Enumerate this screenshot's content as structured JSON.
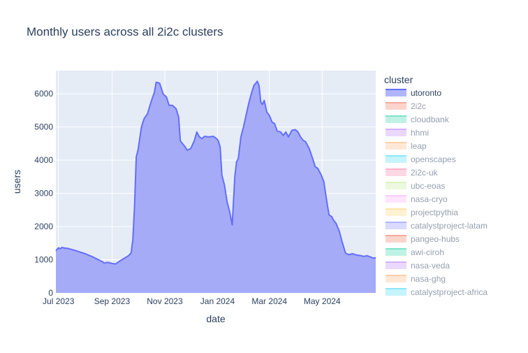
{
  "chart_data": {
    "type": "area",
    "title": "Monthly users across all 2i2c clusters",
    "xlabel": "date",
    "ylabel": "users",
    "xlim": [
      "2023-06-28",
      "2024-07-02"
    ],
    "ylim": [
      0,
      6700
    ],
    "x_ticks": [
      {
        "date": "2023-07-01",
        "label": "Jul 2023"
      },
      {
        "date": "2023-09-01",
        "label": "Sep 2023"
      },
      {
        "date": "2023-11-01",
        "label": "Nov 2023"
      },
      {
        "date": "2024-01-01",
        "label": "Jan 2024"
      },
      {
        "date": "2024-03-01",
        "label": "Mar 2024"
      },
      {
        "date": "2024-05-01",
        "label": "May 2024"
      }
    ],
    "y_ticks": [
      0,
      1000,
      2000,
      3000,
      4000,
      5000,
      6000
    ],
    "grid": true,
    "plot_background": "#e5ecf6",
    "legend": {
      "title": "cluster",
      "placement": "right",
      "entries": [
        {
          "name": "utoronto",
          "color": "#636efa",
          "active": true
        },
        {
          "name": "2i2c",
          "color": "#ef553b",
          "active": false
        },
        {
          "name": "cloudbank",
          "color": "#00cc96",
          "active": false
        },
        {
          "name": "hhmi",
          "color": "#ab63fa",
          "active": false
        },
        {
          "name": "leap",
          "color": "#ffa15a",
          "active": false
        },
        {
          "name": "openscapes",
          "color": "#19d3f3",
          "active": false
        },
        {
          "name": "2i2c-uk",
          "color": "#ff6692",
          "active": false
        },
        {
          "name": "ubc-eoas",
          "color": "#b6e880",
          "active": false
        },
        {
          "name": "nasa-cryo",
          "color": "#ff97ff",
          "active": false
        },
        {
          "name": "projectpythia",
          "color": "#fecb52",
          "active": false
        },
        {
          "name": "catalystproject-latam",
          "color": "#636efa",
          "active": false
        },
        {
          "name": "pangeo-hubs",
          "color": "#ef553b",
          "active": false
        },
        {
          "name": "awi-ciroh",
          "color": "#00cc96",
          "active": false
        },
        {
          "name": "nasa-veda",
          "color": "#ab63fa",
          "active": false
        },
        {
          "name": "nasa-ghg",
          "color": "#ffa15a",
          "active": false
        },
        {
          "name": "catalystproject-africa",
          "color": "#19d3f3",
          "active": false
        }
      ]
    },
    "series": [
      {
        "name": "utoronto",
        "color": "#636efa",
        "fill_color": "#a5abf7",
        "points": [
          [
            "2023-06-28",
            1270
          ],
          [
            "2023-06-30",
            1330
          ],
          [
            "2023-07-01",
            1360
          ],
          [
            "2023-07-03",
            1330
          ],
          [
            "2023-07-05",
            1370
          ],
          [
            "2023-07-08",
            1350
          ],
          [
            "2023-07-12",
            1340
          ],
          [
            "2023-07-20",
            1280
          ],
          [
            "2023-08-01",
            1180
          ],
          [
            "2023-08-10",
            1080
          ],
          [
            "2023-08-20",
            950
          ],
          [
            "2023-08-23",
            900
          ],
          [
            "2023-08-27",
            920
          ],
          [
            "2023-09-01",
            890
          ],
          [
            "2023-09-05",
            870
          ],
          [
            "2023-09-10",
            960
          ],
          [
            "2023-09-20",
            1120
          ],
          [
            "2023-09-23",
            1200
          ],
          [
            "2023-09-25",
            1600
          ],
          [
            "2023-09-27",
            2600
          ],
          [
            "2023-09-29",
            4100
          ],
          [
            "2023-10-01",
            4300
          ],
          [
            "2023-10-05",
            5000
          ],
          [
            "2023-10-08",
            5250
          ],
          [
            "2023-10-12",
            5400
          ],
          [
            "2023-10-16",
            5750
          ],
          [
            "2023-10-20",
            6050
          ],
          [
            "2023-10-22",
            6350
          ],
          [
            "2023-10-26",
            6320
          ],
          [
            "2023-10-30",
            6000
          ],
          [
            "2023-11-03",
            5900
          ],
          [
            "2023-11-06",
            5650
          ],
          [
            "2023-11-10",
            5650
          ],
          [
            "2023-11-14",
            5550
          ],
          [
            "2023-11-17",
            5300
          ],
          [
            "2023-11-19",
            4580
          ],
          [
            "2023-11-24",
            4420
          ],
          [
            "2023-11-27",
            4300
          ],
          [
            "2023-12-01",
            4350
          ],
          [
            "2023-12-05",
            4580
          ],
          [
            "2023-12-08",
            4850
          ],
          [
            "2023-12-11",
            4700
          ],
          [
            "2023-12-14",
            4650
          ],
          [
            "2023-12-17",
            4720
          ],
          [
            "2023-12-22",
            4700
          ],
          [
            "2023-12-27",
            4720
          ],
          [
            "2023-12-31",
            4650
          ],
          [
            "2024-01-02",
            4580
          ],
          [
            "2024-01-04",
            4400
          ],
          [
            "2024-01-06",
            3550
          ],
          [
            "2024-01-09",
            3250
          ],
          [
            "2024-01-12",
            2750
          ],
          [
            "2024-01-15",
            2450
          ],
          [
            "2024-01-18",
            2050
          ],
          [
            "2024-01-21",
            3500
          ],
          [
            "2024-01-23",
            3950
          ],
          [
            "2024-01-25",
            4050
          ],
          [
            "2024-01-28",
            4700
          ],
          [
            "2024-01-31",
            5000
          ],
          [
            "2024-02-03",
            5350
          ],
          [
            "2024-02-06",
            5700
          ],
          [
            "2024-02-09",
            6000
          ],
          [
            "2024-02-12",
            6250
          ],
          [
            "2024-02-16",
            6380
          ],
          [
            "2024-02-18",
            6250
          ],
          [
            "2024-02-20",
            5750
          ],
          [
            "2024-02-22",
            5680
          ],
          [
            "2024-02-24",
            5800
          ],
          [
            "2024-02-27",
            5450
          ],
          [
            "2024-03-01",
            5350
          ],
          [
            "2024-03-04",
            5150
          ],
          [
            "2024-03-07",
            5100
          ],
          [
            "2024-03-10",
            4880
          ],
          [
            "2024-03-14",
            4850
          ],
          [
            "2024-03-17",
            4750
          ],
          [
            "2024-03-20",
            4850
          ],
          [
            "2024-03-23",
            4700
          ],
          [
            "2024-03-27",
            4900
          ],
          [
            "2024-03-31",
            4920
          ],
          [
            "2024-04-03",
            4850
          ],
          [
            "2024-04-06",
            4700
          ],
          [
            "2024-04-09",
            4600
          ],
          [
            "2024-04-12",
            4550
          ],
          [
            "2024-04-16",
            4350
          ],
          [
            "2024-04-20",
            4050
          ],
          [
            "2024-04-23",
            3800
          ],
          [
            "2024-04-26",
            3750
          ],
          [
            "2024-04-30",
            3550
          ],
          [
            "2024-05-03",
            3350
          ],
          [
            "2024-05-05",
            3000
          ],
          [
            "2024-05-07",
            2650
          ],
          [
            "2024-05-09",
            2350
          ],
          [
            "2024-05-12",
            2300
          ],
          [
            "2024-05-14",
            2200
          ],
          [
            "2024-05-17",
            2100
          ],
          [
            "2024-05-21",
            1850
          ],
          [
            "2024-05-24",
            1550
          ],
          [
            "2024-05-28",
            1200
          ],
          [
            "2024-06-01",
            1150
          ],
          [
            "2024-06-05",
            1180
          ],
          [
            "2024-06-10",
            1140
          ],
          [
            "2024-06-15",
            1120
          ],
          [
            "2024-06-18",
            1100
          ],
          [
            "2024-06-22",
            1120
          ],
          [
            "2024-06-26",
            1080
          ],
          [
            "2024-06-29",
            1050
          ],
          [
            "2024-07-02",
            1060
          ]
        ]
      }
    ]
  }
}
